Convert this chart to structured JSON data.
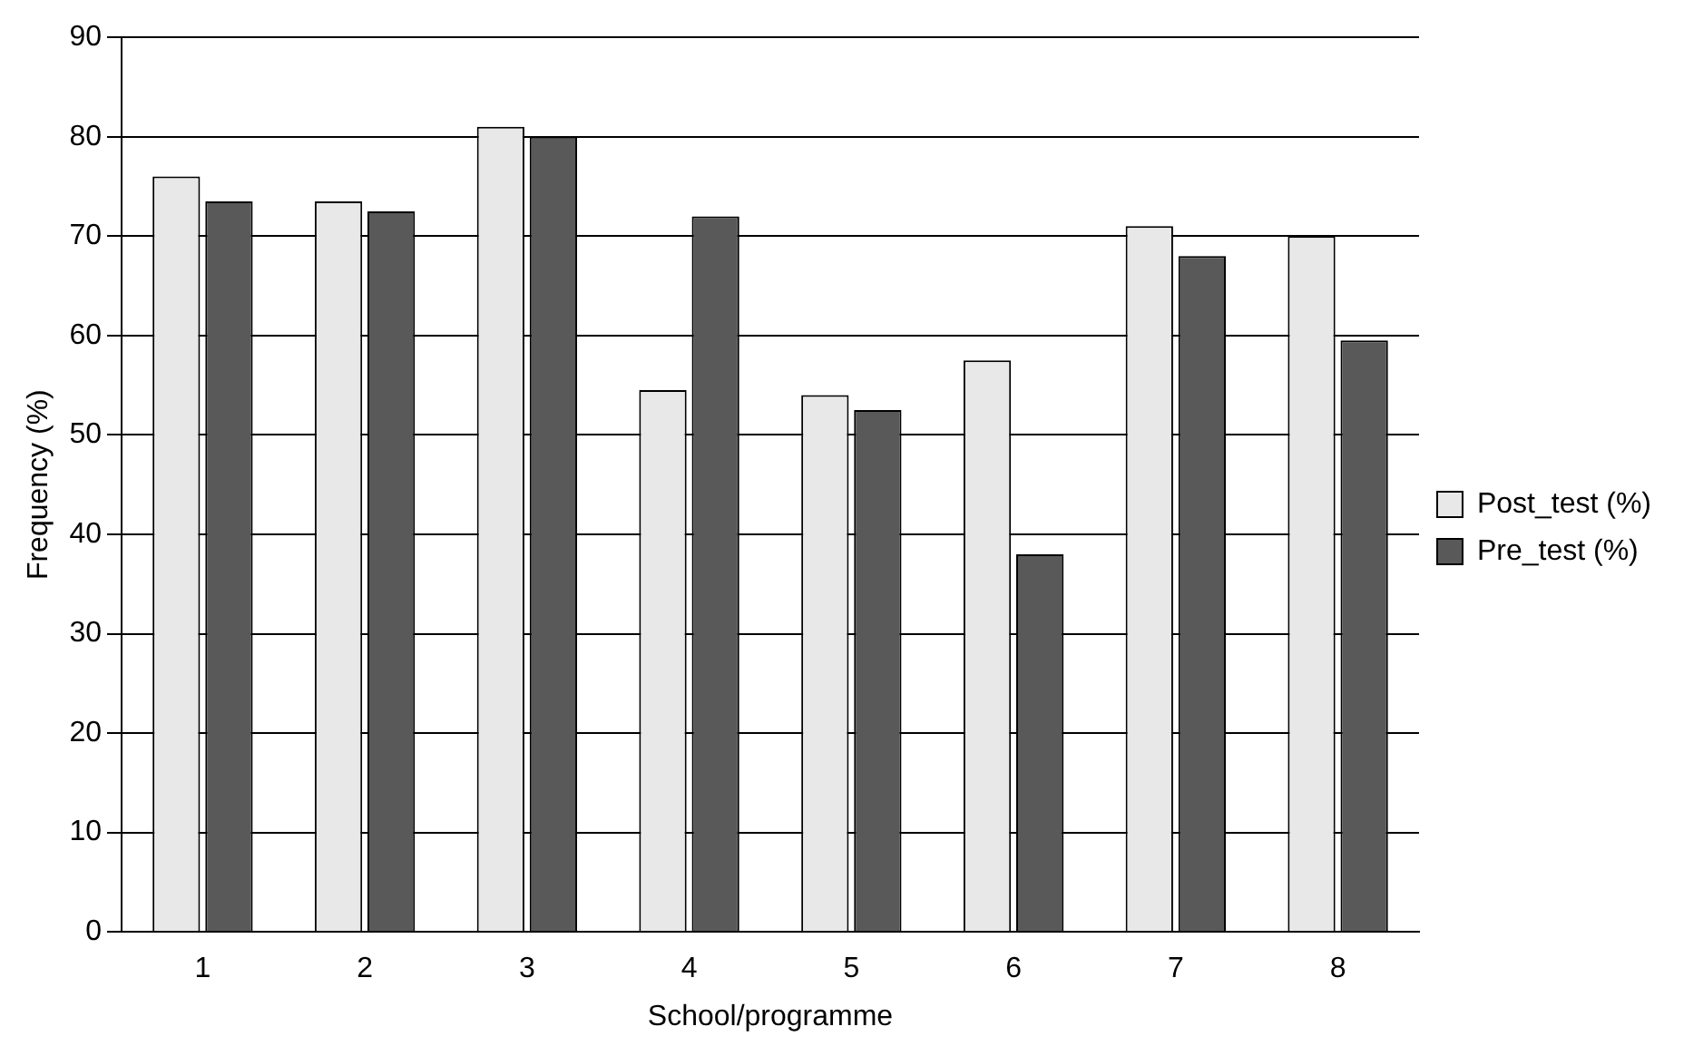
{
  "chart_data": {
    "type": "bar",
    "xlabel": "School/programme",
    "ylabel": "Frequency (%)",
    "categories": [
      "1",
      "2",
      "3",
      "4",
      "5",
      "6",
      "7",
      "8"
    ],
    "series": [
      {
        "name": "Post_test (%)",
        "color": "#e8e8e8",
        "values": [
          76,
          73.5,
          81,
          54.5,
          54,
          57.5,
          71,
          70
        ]
      },
      {
        "name": "Pre_test (%)",
        "color": "#595959",
        "values": [
          73.5,
          72.5,
          80,
          72,
          52.5,
          38,
          68,
          59.5
        ]
      }
    ],
    "ylim": [
      0,
      90
    ],
    "yticks": [
      0,
      10,
      20,
      30,
      40,
      50,
      60,
      70,
      80,
      90
    ],
    "grid": "y",
    "legend": "right"
  }
}
